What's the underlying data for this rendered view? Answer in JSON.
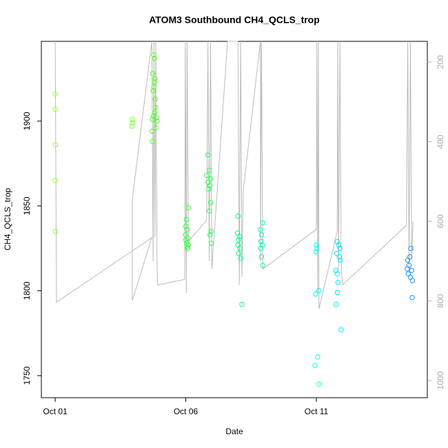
{
  "chart_data": {
    "type": "scatter",
    "title": "ATOM3 Southbound CH4_QCLS_trop",
    "xlabel": "Date",
    "ylabel": "CH4_QCLS_trop",
    "xlim": [
      0.47,
      15.25
    ],
    "xticks": [
      {
        "value": 1,
        "label": "Oct 01"
      },
      {
        "value": 6,
        "label": "Oct 06"
      },
      {
        "value": 11,
        "label": "Oct 11"
      }
    ],
    "ylim": [
      1737,
      1947
    ],
    "yticks": [
      1750,
      1800,
      1850,
      1900
    ],
    "y2lim": [
      1043,
      148
    ],
    "y2ticks": [
      200,
      400,
      600,
      800,
      1000
    ],
    "groups": [
      {
        "color": "#99ff33",
        "x": [
          1.0,
          1.0,
          1.01,
          1.0,
          1.01
        ],
        "values": [
          1916,
          1907,
          1886,
          1865,
          1835
        ]
      },
      {
        "color": "#77ff33",
        "x": [
          3.95,
          3.96,
          3.94
        ],
        "values": [
          1901,
          1899,
          1897
        ]
      },
      {
        "color": "#55ff22",
        "x": [
          4.77,
          4.8,
          4.73,
          4.82,
          4.8,
          4.78,
          4.75,
          4.83,
          4.85,
          4.8,
          4.76,
          4.88,
          4.72,
          4.9,
          4.86,
          4.7,
          4.72
        ],
        "values": [
          1939,
          1937,
          1928,
          1925,
          1923,
          1920,
          1918,
          1913,
          1908,
          1905,
          1903,
          1902,
          1901,
          1900,
          1896,
          1894,
          1888
        ]
      },
      {
        "color": "#33ff44",
        "x": [
          6.1,
          6.02,
          6.0,
          6.05,
          5.98,
          6.08,
          6.0,
          6.03,
          6.1,
          6.05,
          6.07
        ],
        "values": [
          1849,
          1842,
          1838,
          1836,
          1833,
          1831,
          1830,
          1828,
          1827,
          1826,
          1825
        ]
      },
      {
        "color": "#22ff55",
        "x": [
          6.85,
          6.9,
          6.8,
          6.95,
          6.85,
          6.92,
          6.88,
          6.95,
          6.9,
          6.97,
          6.93,
          6.98
        ],
        "values": [
          1880,
          1871,
          1868,
          1866,
          1864,
          1862,
          1860,
          1852,
          1847,
          1835,
          1833,
          1828
        ]
      },
      {
        "color": "#00ff88",
        "x": [
          8.0,
          7.98,
          8.05,
          8.02,
          8.0,
          8.07,
          8.03,
          8.1,
          8.15
        ],
        "values": [
          1844,
          1834,
          1832,
          1830,
          1827,
          1825,
          1822,
          1819,
          1792
        ]
      },
      {
        "color": "#00ffaa",
        "x": [
          8.95,
          8.85,
          8.9,
          8.88,
          8.93,
          8.87,
          8.9,
          8.95
        ],
        "values": [
          1840,
          1836,
          1833,
          1829,
          1827,
          1825,
          1820,
          1815
        ]
      },
      {
        "color": "#00ffee",
        "x": [
          11.0,
          11.02,
          10.98,
          11.1,
          10.97,
          11.05,
          10.95,
          11.1
        ],
        "values": [
          1827,
          1825,
          1823,
          1800,
          1798,
          1761,
          1756,
          1745
        ]
      },
      {
        "color": "#00e5ff",
        "x": [
          11.8,
          11.85,
          11.9,
          11.78,
          11.88,
          11.92,
          11.75,
          11.8,
          11.83,
          11.8,
          11.76,
          11.95
        ],
        "values": [
          1829,
          1827,
          1825,
          1822,
          1820,
          1818,
          1812,
          1810,
          1805,
          1799,
          1792,
          1777
        ]
      },
      {
        "color": "#1e90ff",
        "x": [
          14.62,
          14.58,
          14.5,
          14.55,
          14.48,
          14.65,
          14.52,
          14.6,
          14.68,
          14.67
        ],
        "values": [
          1825,
          1820,
          1818,
          1815,
          1813,
          1812,
          1810,
          1808,
          1806,
          1796
        ]
      }
    ],
    "line": {
      "axis": "y2",
      "color": "#bbbbbb",
      "x": [
        1.0,
        1.05,
        4.7,
        3.95,
        3.95,
        4.7,
        4.75,
        4.78,
        4.82,
        4.85,
        4.9,
        4.92,
        5.96,
        5.98,
        6.02,
        6.05,
        6.1,
        6.8,
        6.85,
        6.9,
        6.95,
        7.0,
        7.6,
        8.0,
        8.05,
        8.1,
        8.15,
        8.2,
        8.86,
        8.86,
        8.9,
        8.95,
        11.0,
        11.02,
        11.05,
        11.08,
        11.1,
        11.8,
        11.82,
        11.85,
        11.9,
        11.95,
        12.0,
        14.45,
        14.5,
        14.55,
        14.6,
        14.65,
        14.7
      ],
      "values": [
        148,
        803,
        641,
        799,
        546,
        148,
        700,
        148,
        640,
        148,
        700,
        760,
        746,
        148,
        780,
        148,
        650,
        597,
        148,
        700,
        148,
        720,
        148,
        148,
        760,
        148,
        740,
        523,
        148,
        700,
        148,
        720,
        620,
        148,
        780,
        148,
        820,
        625,
        148,
        720,
        148,
        700,
        760,
        610,
        148,
        720,
        148,
        700,
        600
      ]
    }
  }
}
